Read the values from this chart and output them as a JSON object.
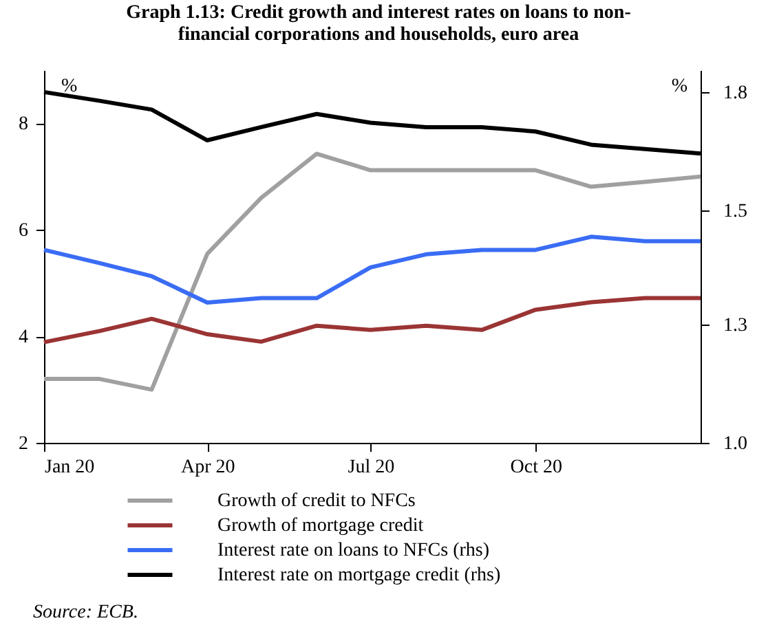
{
  "chart_data": {
    "type": "line",
    "title": "Graph 1.13: Credit growth and interest rates on loans to non-financial corporations and households, euro area",
    "ylabel": "%",
    "y2label": "%",
    "x": [
      "2020-01",
      "2020-02",
      "2020-03",
      "2020-04",
      "2020-05",
      "2020-06",
      "2020-07",
      "2020-08",
      "2020-09",
      "2020-10",
      "2020-11",
      "2020-12",
      "2021-01"
    ],
    "xlim": [
      "2020-01",
      "2021-01"
    ],
    "xticks": [
      {
        "value": "2020-01",
        "label": "Jan 20"
      },
      {
        "value": "2020-04",
        "label": "Apr 20"
      },
      {
        "value": "2020-07",
        "label": "Jul 20"
      },
      {
        "value": "2020-10",
        "label": "Oct 20"
      }
    ],
    "ylim": [
      2,
      9
    ],
    "yticks": [
      2,
      4,
      6,
      8
    ],
    "y2lim": [
      1.0,
      1.85
    ],
    "y2ticks": [
      {
        "value": 1.0,
        "label": "1.0"
      },
      {
        "value": 1.27,
        "label": "1.3"
      },
      {
        "value": 1.53,
        "label": "1.5"
      },
      {
        "value": 1.8,
        "label": "1.8"
      }
    ],
    "series": [
      {
        "name": "Growth of credit to NFCs",
        "color": "#a0a0a0",
        "values": [
          3.2,
          3.2,
          3.0,
          5.55,
          6.6,
          7.43,
          7.12,
          7.12,
          7.12,
          7.12,
          6.81,
          6.9,
          7.0
        ]
      },
      {
        "name": "Growth of mortgage credit",
        "color": "#9b3434",
        "values": [
          3.89,
          4.1,
          4.33,
          4.04,
          3.9,
          4.2,
          4.12,
          4.2,
          4.12,
          4.5,
          4.64,
          4.72,
          4.72
        ]
      },
      {
        "name": "Interest rate on loans to NFCs (rhs)",
        "color": "#3a6cf4",
        "axis": "y2",
        "values": [
          1.44,
          1.41,
          1.38,
          1.32,
          1.33,
          1.33,
          1.4,
          1.43,
          1.44,
          1.44,
          1.47,
          1.46,
          1.46
        ]
      },
      {
        "name": "Interest rate on mortgage credit (rhs)",
        "color": "#000000",
        "axis": "y2",
        "values": [
          1.8,
          1.78,
          1.76,
          1.69,
          1.72,
          1.75,
          1.73,
          1.72,
          1.72,
          1.71,
          1.68,
          1.67,
          1.66
        ]
      }
    ],
    "grid": false,
    "legend": "bottom",
    "marker": "none",
    "line_style": "solid",
    "annotations": [
      "Source: ECB."
    ]
  }
}
